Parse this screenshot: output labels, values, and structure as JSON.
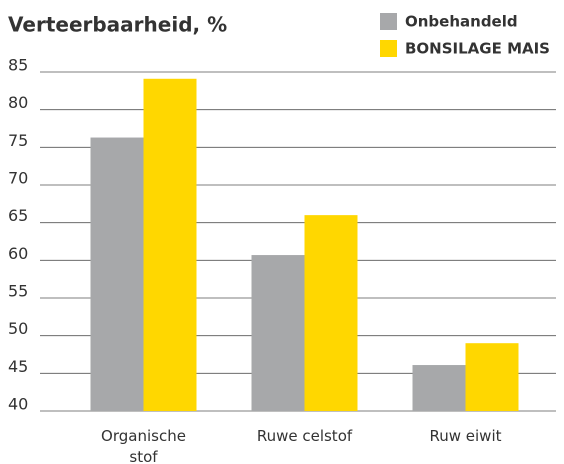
{
  "chart_data": {
    "type": "bar",
    "title": "Verteerbaarheid, %",
    "categories": [
      "Organische stof",
      "Ruwe celstof",
      "Ruw eiwit"
    ],
    "series": [
      {
        "name": "Onbehandeld",
        "color": "#a7a8aa",
        "values": [
          76.3,
          60.7,
          46.1
        ]
      },
      {
        "name": "BONSILAGE MAIS",
        "color": "#ffd700",
        "values": [
          84.1,
          66,
          49
        ]
      }
    ],
    "ylim": [
      40,
      85
    ],
    "yticks": [
      40,
      45,
      50,
      55,
      60,
      65,
      70,
      75,
      80,
      85
    ],
    "grid": true
  }
}
